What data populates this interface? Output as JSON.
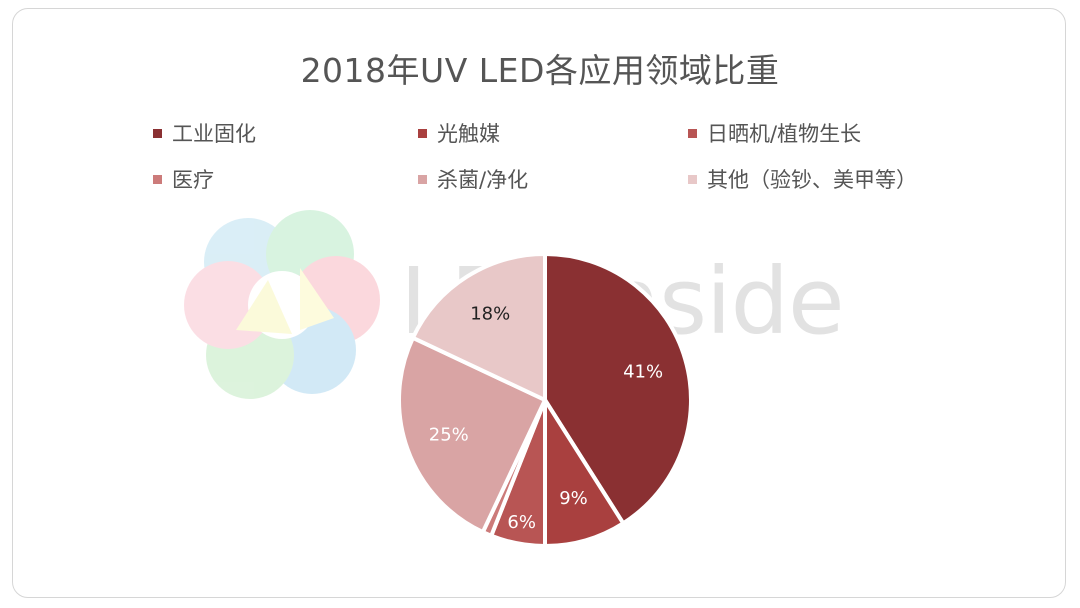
{
  "chart_data": {
    "type": "pie",
    "title": "2018年UV LED各应用领域比重",
    "categories": [
      "工业固化",
      "光触媒",
      "日晒机/植物生长",
      "医疗",
      "杀菌/净化",
      "其他（验钞、美甲等）"
    ],
    "values": [
      41,
      9,
      6,
      1,
      25,
      18
    ],
    "data_labels": [
      "41%",
      "9%",
      "6%",
      "",
      "25%",
      "18%"
    ],
    "colors": [
      "#8a3032",
      "#a9403f",
      "#b85554",
      "#cc7b7a",
      "#d9a4a4",
      "#e8c8c8"
    ],
    "label_colors": [
      "#ffffff",
      "#ffffff",
      "#ffffff",
      "#ffffff",
      "#ffffff",
      "#222222"
    ],
    "legend_position": "top"
  },
  "watermark": {
    "text": "LEDinside"
  }
}
